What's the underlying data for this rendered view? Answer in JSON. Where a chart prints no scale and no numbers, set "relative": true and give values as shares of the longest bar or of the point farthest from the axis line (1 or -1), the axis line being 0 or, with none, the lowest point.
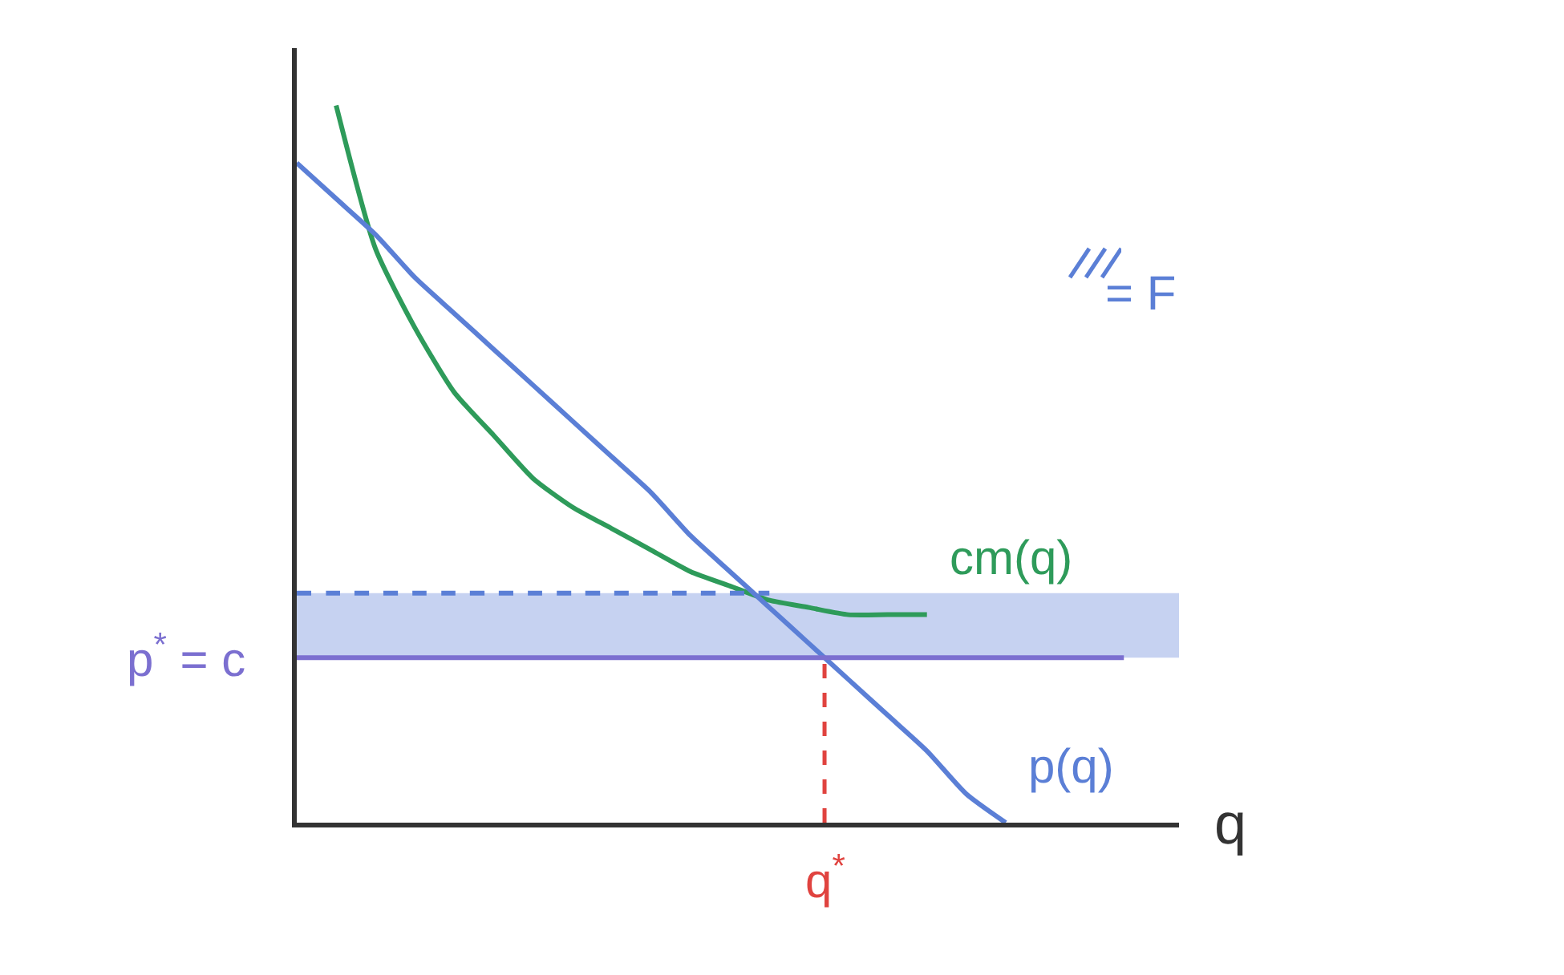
{
  "chart_data": {
    "type": "line",
    "relative": true,
    "xlabel": "q",
    "legend": "top right",
    "grid": false,
    "annotations": [
      "q$^{*}$"
    ],
    "categories": [
      null,
      null,
      null,
      null,
      null,
      null,
      null,
      null,
      null,
      null,
      null,
      null,
      null,
      null,
      null,
      null,
      null,
      null,
      null,
      null,
      null,
      null,
      null
    ],
    "series": [
      {
        "name": "cm(q)",
        "color": "#2e9b5a",
        "values": [
          null,
          1,
          0.8,
          0.69,
          0.6,
          0.54,
          0.48,
          0.44,
          0.41,
          0.38,
          0.35,
          0.33,
          0.31,
          0.3,
          0.29,
          0.29,
          0.29,
          null,
          null,
          null,
          null,
          null,
          null
        ]
      },
      {
        "name": "p(q)",
        "color": "#5b7fd6",
        "values": [
          0.92,
          0.87,
          0.82,
          0.76,
          0.71,
          0.66,
          0.61,
          0.56,
          0.51,
          0.46,
          0.4,
          0.35,
          0.3,
          0.25,
          0.2,
          0.15,
          0.1,
          0.04,
          0,
          null,
          null,
          null,
          null
        ]
      },
      {
        "name": "p$^{*}$ = c",
        "color": "#7b6fd0",
        "values": [
          0.23,
          0.23,
          0.23,
          0.23,
          0.23,
          0.23,
          0.23,
          0.23,
          0.23,
          0.23,
          0.23,
          0.23,
          0.23,
          0.23,
          0.23,
          0.23,
          0.23,
          0.23,
          0.23,
          0.23,
          0.23,
          0.23,
          null
        ]
      },
      {
        "color": "#5b7fd6",
        "line_style": "dashed",
        "values": [
          0.32,
          0.32,
          0.32,
          0.32,
          0.32,
          0.32,
          0.32,
          0.32,
          0.32,
          0.32,
          0.32,
          0.32,
          0.32,
          null,
          null,
          null,
          null,
          null,
          null,
          null,
          null,
          null,
          null
        ]
      }
    ],
    "bands": [
      {
        "axis": "y",
        "from": 0.23,
        "to": 0.32,
        "label": "= F",
        "color": "#5b7fd6"
      }
    ]
  }
}
